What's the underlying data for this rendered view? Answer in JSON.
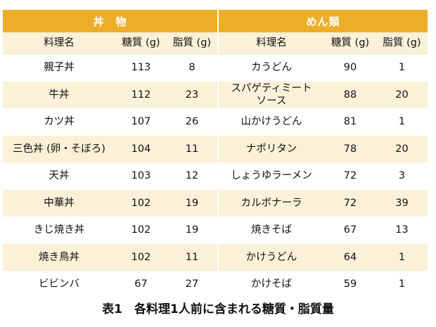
{
  "header": {
    "left": "丼　物",
    "right": "めん類"
  },
  "columns": {
    "left": [
      "料理名",
      "糖質 (g)",
      "脂質 (g)"
    ],
    "right": [
      "料理名",
      "糖質 (g)",
      "脂質 (g)"
    ]
  },
  "rows": [
    {
      "l_name": "親子丼",
      "l_carb": "113",
      "l_fat": "8",
      "r_name": "カうどん",
      "r_carb": "90",
      "r_fat": "1"
    },
    {
      "l_name": "牛丼",
      "l_carb": "112",
      "l_fat": "23",
      "r_name": "スパゲティミート\nソース",
      "r_carb": "88",
      "r_fat": "20"
    },
    {
      "l_name": "カツ丼",
      "l_carb": "107",
      "l_fat": "26",
      "r_name": "山かけうどん",
      "r_carb": "81",
      "r_fat": "1"
    },
    {
      "l_name": "三色丼 (卵・そぼろ)",
      "l_carb": "104",
      "l_fat": "11",
      "r_name": "ナポリタン",
      "r_carb": "78",
      "r_fat": "20"
    },
    {
      "l_name": "天丼",
      "l_carb": "103",
      "l_fat": "12",
      "r_name": "しょうゆラーメン",
      "r_carb": "72",
      "r_fat": "3"
    },
    {
      "l_name": "中華丼",
      "l_carb": "102",
      "l_fat": "19",
      "r_name": "カルボナーラ",
      "r_carb": "72",
      "r_fat": "39"
    },
    {
      "l_name": "きじ焼き丼",
      "l_carb": "102",
      "l_fat": "19",
      "r_name": "焼きそば",
      "r_carb": "67",
      "r_fat": "13"
    },
    {
      "l_name": "焼き鳥丼",
      "l_carb": "102",
      "l_fat": "11",
      "r_name": "かけうどん",
      "r_carb": "64",
      "r_fat": "1"
    },
    {
      "l_name": "ビビンバ",
      "l_carb": "67",
      "l_fat": "27",
      "r_name": "かけそば",
      "r_carb": "59",
      "r_fat": "1"
    }
  ],
  "caption": "表1　各料理1人前に含まれる糖質・脂質量",
  "colors": {
    "header": "#ecae28",
    "stripe": "#fbf0d8"
  }
}
